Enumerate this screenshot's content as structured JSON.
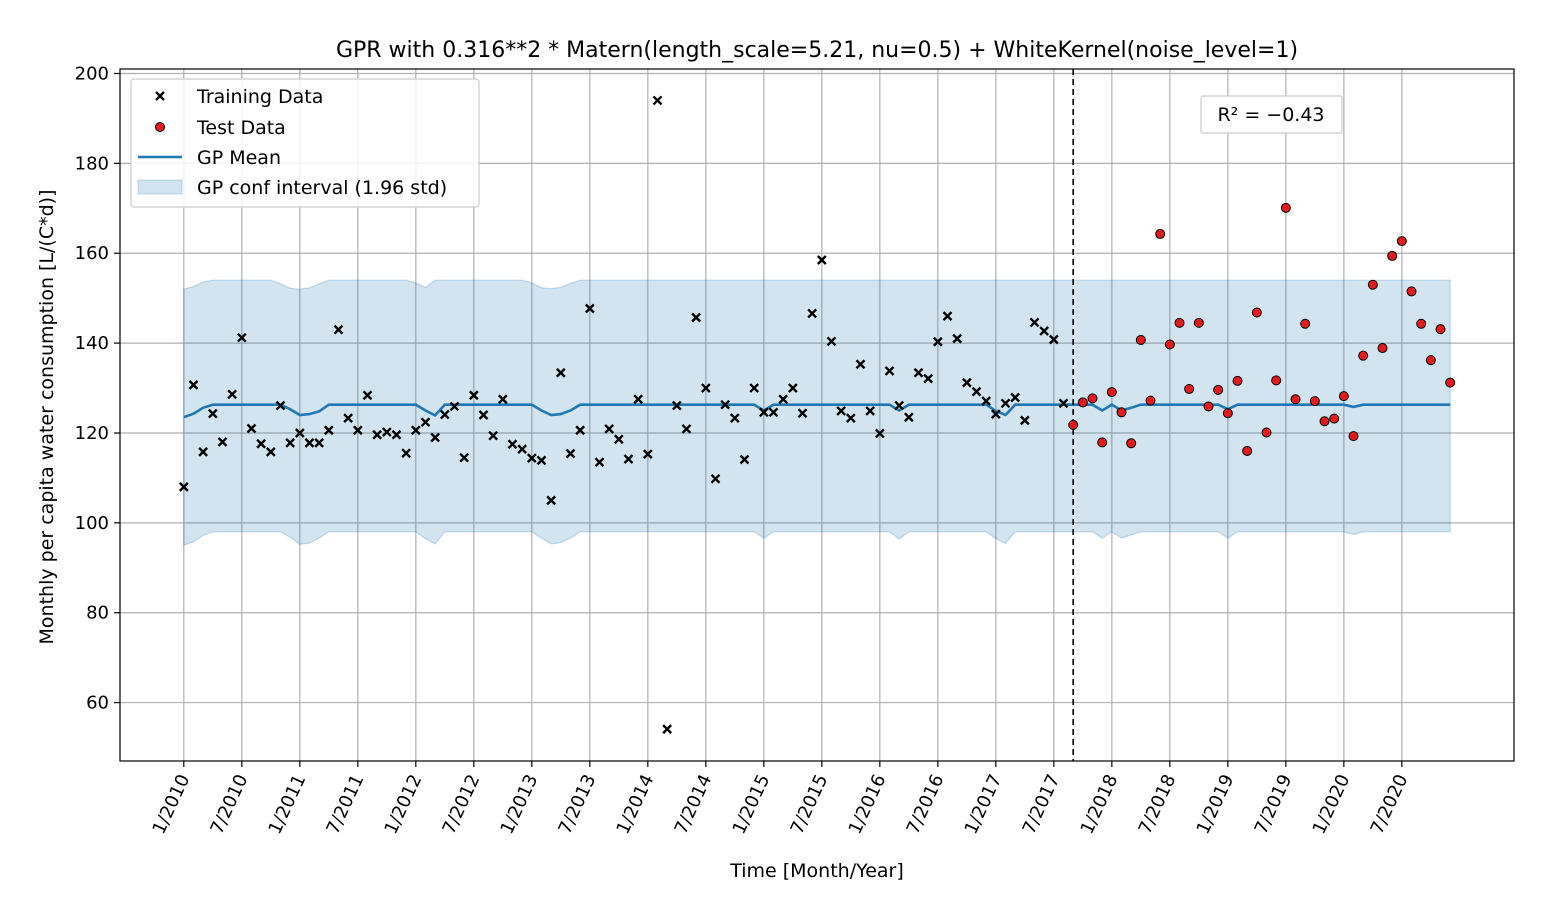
{
  "chart_data": {
    "type": "scatter",
    "title": "GPR with 0.316**2 * Matern(length_scale=5.21, nu=0.5) + WhiteKernel(noise_level=1)",
    "xlabel": "Time [Month/Year]",
    "ylabel": "Monthly per capita water consumption [L/(C*d)]",
    "annotation": "R² = −0.43",
    "x_tick_labels": [
      "1/2010",
      "7/2010",
      "1/2011",
      "7/2011",
      "1/2012",
      "7/2012",
      "1/2013",
      "7/2013",
      "1/2014",
      "7/2014",
      "1/2015",
      "7/2015",
      "1/2016",
      "7/2016",
      "1/2017",
      "7/2017",
      "1/2018",
      "7/2018",
      "1/2019",
      "7/2019",
      "1/2020",
      "7/2020"
    ],
    "y_ticks": [
      60,
      80,
      100,
      120,
      140,
      160,
      180,
      200
    ],
    "xlim": [
      -6.6,
      137.6
    ],
    "ylim": [
      47,
      201
    ],
    "split_index": 92,
    "grid": true,
    "legend_placement": "top-left",
    "legend": [
      {
        "label": "Training Data",
        "kind": "x-marker"
      },
      {
        "label": "Test Data",
        "kind": "red-dot"
      },
      {
        "label": "GP Mean",
        "kind": "line"
      },
      {
        "label": "GP conf interval (1.96 std)",
        "kind": "band"
      }
    ],
    "colors": {
      "mean": "#1f77b4",
      "band": "#1f77b4",
      "test": "#e41a1c",
      "train": "#000000",
      "grid": "#b0b0b0"
    },
    "series": [
      {
        "name": "Training Data",
        "x_start": 0,
        "values": [
          108,
          130.7,
          115.8,
          124.3,
          118,
          128.6,
          141.2,
          121,
          117.6,
          115.8,
          126.1,
          117.8,
          120,
          117.8,
          117.8,
          120.6,
          143,
          123.3,
          120.6,
          128.4,
          119.6,
          120.2,
          119.6,
          115.5,
          120.6,
          122.4,
          119,
          124.1,
          125.9,
          114.5,
          128.4,
          124,
          119.4,
          127.5,
          117.5,
          116.4,
          114.4,
          113.9,
          105,
          133.4,
          115.4,
          120.6,
          147.7,
          113.5,
          120.9,
          118.6,
          114.2,
          127.5,
          115.3,
          194,
          54.1,
          126.1,
          120.9,
          145.7,
          130,
          109.8,
          126.3,
          123.3,
          114.1,
          130,
          124.6,
          124.6,
          127.5,
          130,
          124.4,
          146.6,
          158.5,
          140.4,
          124.9,
          123.3,
          135.3,
          124.9,
          119.9,
          133.8,
          126.1,
          123.5,
          133.4,
          132.1,
          140.3,
          146,
          141,
          131.2,
          129.2,
          127.1,
          124.2,
          126.6,
          127.9,
          122.8,
          144.6,
          142.7,
          140.8,
          126.6
        ]
      },
      {
        "name": "Test Data",
        "x_start": 92,
        "values": [
          121.8,
          126.8,
          127.7,
          117.9,
          129.1,
          124.6,
          117.7,
          140.7,
          127.2,
          164.3,
          139.7,
          144.5,
          129.8,
          144.5,
          125.9,
          129.6,
          124.4,
          131.6,
          116,
          146.8,
          120.1,
          131.7,
          170.1,
          127.5,
          144.3,
          127.1,
          122.6,
          123.2,
          128.2,
          119.3,
          137.2,
          153,
          138.9,
          159.4,
          162.7,
          151.5,
          144.3,
          136.2,
          143.1,
          131.2
        ]
      }
    ],
    "gp_mean": [
      [
        0,
        123.5
      ],
      [
        1,
        124.3
      ],
      [
        2,
        125.6
      ],
      [
        3,
        126.3
      ],
      [
        10,
        126.3
      ],
      [
        11,
        125.3
      ],
      [
        12,
        124
      ],
      [
        13,
        124.2
      ],
      [
        14,
        124.8
      ],
      [
        15,
        126.3
      ],
      [
        24,
        126.3
      ],
      [
        25,
        125
      ],
      [
        26,
        123.9
      ],
      [
        27,
        126.3
      ],
      [
        36,
        126.3
      ],
      [
        37,
        125
      ],
      [
        38,
        124
      ],
      [
        39,
        124.2
      ],
      [
        40,
        125
      ],
      [
        41,
        126.3
      ],
      [
        59,
        126.3
      ],
      [
        60,
        125
      ],
      [
        61,
        126.3
      ],
      [
        73,
        126.3
      ],
      [
        74,
        125
      ],
      [
        75,
        126.3
      ],
      [
        83,
        126.3
      ],
      [
        84,
        124.9
      ],
      [
        85,
        124
      ],
      [
        86,
        126.3
      ],
      [
        92,
        126.3
      ],
      [
        94,
        126.3
      ],
      [
        95,
        125
      ],
      [
        96,
        126.3
      ],
      [
        97,
        125
      ],
      [
        98,
        125.6
      ],
      [
        99,
        126.3
      ],
      [
        107,
        126.3
      ],
      [
        108,
        125.3
      ],
      [
        109,
        126.3
      ],
      [
        120,
        126.3
      ],
      [
        121,
        125.8
      ],
      [
        122,
        126.3
      ],
      [
        131,
        126.3
      ]
    ],
    "gp_upper": [
      [
        0,
        152
      ],
      [
        1,
        152.6
      ],
      [
        2,
        153.6
      ],
      [
        3,
        154
      ],
      [
        9,
        154
      ],
      [
        10,
        153.2
      ],
      [
        11,
        152.2
      ],
      [
        12,
        152
      ],
      [
        13,
        152.3
      ],
      [
        14,
        153.2
      ],
      [
        15,
        154
      ],
      [
        23,
        154
      ],
      [
        24,
        153.4
      ],
      [
        25,
        152.4
      ],
      [
        26,
        154
      ],
      [
        35,
        154
      ],
      [
        36,
        153.4
      ],
      [
        37,
        152.3
      ],
      [
        38,
        152.1
      ],
      [
        39,
        152.4
      ],
      [
        40,
        153.3
      ],
      [
        41,
        154
      ],
      [
        131,
        154
      ]
    ],
    "gp_lower": [
      [
        0,
        95
      ],
      [
        1,
        95.8
      ],
      [
        2,
        97.2
      ],
      [
        3,
        98
      ],
      [
        10,
        98
      ],
      [
        11,
        96.8
      ],
      [
        12,
        95.2
      ],
      [
        13,
        95.5
      ],
      [
        14,
        96.6
      ],
      [
        15,
        98
      ],
      [
        24,
        98
      ],
      [
        25,
        96.5
      ],
      [
        26,
        95.3
      ],
      [
        27,
        98
      ],
      [
        36,
        98
      ],
      [
        37,
        96.6
      ],
      [
        38,
        95.3
      ],
      [
        39,
        95.6
      ],
      [
        40,
        96.6
      ],
      [
        41,
        98
      ],
      [
        59,
        98
      ],
      [
        60,
        96.6
      ],
      [
        61,
        98
      ],
      [
        73,
        98
      ],
      [
        74,
        96.4
      ],
      [
        75,
        98
      ],
      [
        83,
        98
      ],
      [
        84,
        96.5
      ],
      [
        85,
        95.4
      ],
      [
        86,
        98
      ],
      [
        94,
        98
      ],
      [
        95,
        96.6
      ],
      [
        96,
        98
      ],
      [
        97,
        96.6
      ],
      [
        98,
        97.3
      ],
      [
        99,
        98
      ],
      [
        107,
        98
      ],
      [
        108,
        96.6
      ],
      [
        109,
        98
      ],
      [
        120,
        98
      ],
      [
        121,
        97.4
      ],
      [
        122,
        98
      ],
      [
        131,
        98
      ]
    ]
  }
}
